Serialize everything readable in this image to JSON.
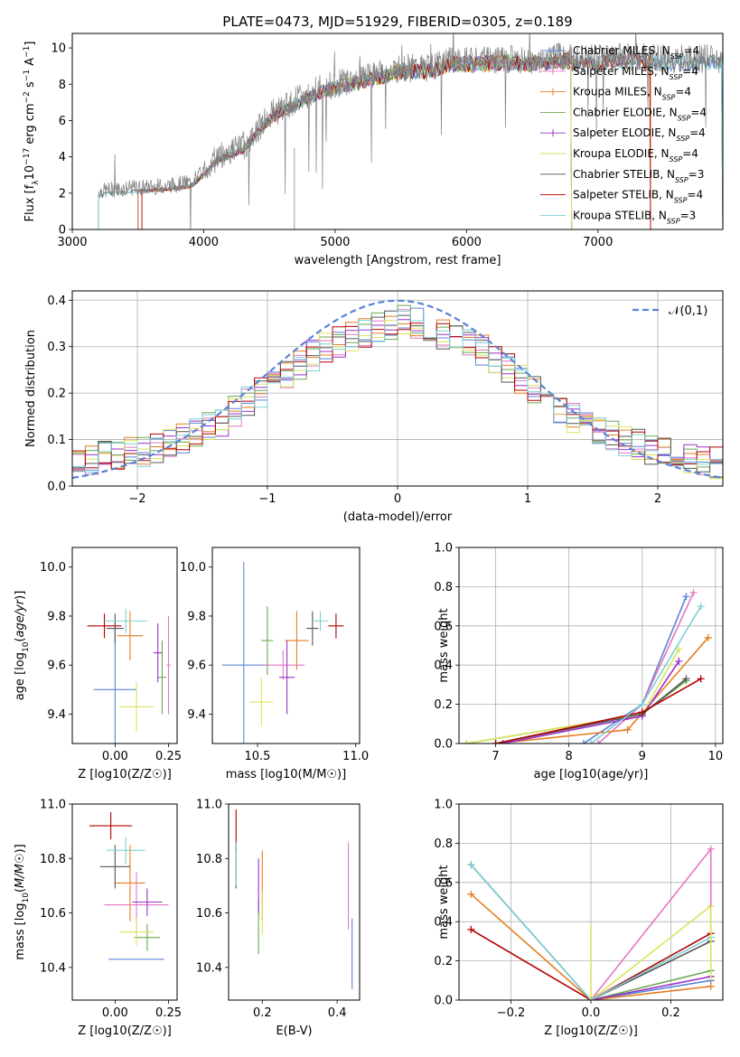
{
  "figure_title": "PLATE=0473, MJD=51929, FIBERID=0305, z=0.189",
  "colors": {
    "chabrier_miles": "#5b84d6",
    "salpeter_miles": "#e377c2",
    "kroupa_miles": "#e67e22",
    "chabrier_elodie": "#6aa84f",
    "salpeter_elodie": "#9b30c8",
    "kroupa_elodie": "#dce35b",
    "chabrier_stelib": "#555555",
    "salpeter_stelib": "#b30000",
    "kroupa_stelib": "#7ecfd6",
    "grid": "#b0b0b0"
  },
  "chart_data": [
    {
      "id": "spectrum",
      "type": "line",
      "title": "PLATE=0473, MJD=51929, FIBERID=0305, z=0.189",
      "xlabel": "wavelength [Angstrom, rest frame]",
      "ylabel": "Flux [f_λ 10^-17 erg cm^-2 s^-1 A^-1]",
      "xlim": [
        3000,
        7950
      ],
      "ylim": [
        0,
        10.8
      ],
      "xticks": [
        3000,
        4000,
        5000,
        6000,
        7000
      ],
      "yticks": [
        0,
        2,
        4,
        6,
        8,
        10
      ],
      "grid": false,
      "legend_position": "right",
      "series": [
        {
          "name": "Chabrier MILES, N_SSP=4",
          "color_key": "chabrier_miles",
          "marker": "+"
        },
        {
          "name": "Salpeter MILES, N_SSP=4",
          "color_key": "salpeter_miles",
          "marker": "+"
        },
        {
          "name": "Kroupa MILES, N_SSP=4",
          "color_key": "kroupa_miles",
          "marker": "+"
        },
        {
          "name": "Chabrier ELODIE, N_SSP=4",
          "color_key": "chabrier_elodie",
          "marker": ""
        },
        {
          "name": "Salpeter ELODIE, N_SSP=4",
          "color_key": "salpeter_elodie",
          "marker": "+"
        },
        {
          "name": "Kroupa ELODIE, N_SSP=4",
          "color_key": "kroupa_elodie",
          "marker": ""
        },
        {
          "name": "Chabrier STELIB, N_SSP=3",
          "color_key": "chabrier_stelib",
          "marker": ""
        },
        {
          "name": "Salpeter STELIB, N_SSP=4",
          "color_key": "salpeter_stelib",
          "marker": ""
        },
        {
          "name": "Kroupa STELIB, N_SSP=3",
          "color_key": "kroupa_stelib",
          "marker": ""
        }
      ],
      "continuum": {
        "x": [
          3200,
          3300,
          3500,
          3700,
          3900,
          4000,
          4100,
          4300,
          4500,
          4700,
          4900,
          5100,
          5300,
          5500,
          5700,
          5900,
          6100,
          6300,
          6500,
          6700,
          6900,
          7100,
          7300,
          7400
        ],
        "y": [
          2.1,
          2.2,
          2.3,
          2.4,
          2.6,
          3.2,
          4.0,
          4.6,
          6.3,
          7.1,
          7.8,
          8.2,
          8.5,
          8.9,
          8.9,
          9.3,
          9.3,
          9.4,
          9.3,
          9.5,
          9.4,
          9.5,
          9.5,
          9.4
        ]
      },
      "model_ranges": [
        {
          "series_index": 0,
          "x": [
            3500,
            7950
          ]
        },
        {
          "series_index": 1,
          "x": [
            3500,
            7400
          ]
        },
        {
          "series_index": 2,
          "x": [
            3500,
            7400
          ]
        },
        {
          "series_index": 3,
          "x": [
            3900,
            6800
          ]
        },
        {
          "series_index": 4,
          "x": [
            3900,
            6800
          ]
        },
        {
          "series_index": 5,
          "x": [
            3900,
            6800
          ]
        },
        {
          "series_index": 6,
          "x": [
            3200,
            7950
          ]
        },
        {
          "series_index": 7,
          "x": [
            3530,
            7400
          ]
        },
        {
          "series_index": 8,
          "x": [
            3200,
            7950
          ]
        }
      ]
    },
    {
      "id": "residuals",
      "type": "line",
      "xlabel": "(data-model)/error",
      "ylabel": "Normed distribution",
      "xlim": [
        -2.5,
        2.5
      ],
      "ylim": [
        0,
        0.42
      ],
      "xticks": [
        -2,
        -1,
        0,
        1,
        2
      ],
      "yticks": [
        0.0,
        0.1,
        0.2,
        0.3,
        0.4
      ],
      "grid": true,
      "legend_position": "top-right",
      "legend": [
        "𝒩(0,1)"
      ],
      "bin_edges_step": 0.1,
      "histogram_base": [
        0.05,
        0.06,
        0.065,
        0.07,
        0.07,
        0.075,
        0.08,
        0.09,
        0.1,
        0.12,
        0.13,
        0.14,
        0.16,
        0.18,
        0.2,
        0.22,
        0.24,
        0.26,
        0.28,
        0.3,
        0.31,
        0.32,
        0.33,
        0.34,
        0.35,
        0.36,
        0.35,
        0.34,
        0.33,
        0.32,
        0.31,
        0.29,
        0.27,
        0.25,
        0.23,
        0.21,
        0.19,
        0.17,
        0.15,
        0.13,
        0.12,
        0.11,
        0.1,
        0.09,
        0.08,
        0.07,
        0.065,
        0.06,
        0.055,
        0.05
      ]
    },
    {
      "id": "age_vs_Z",
      "type": "scatter",
      "xlabel": "Z [log10(Z/Z☉)]",
      "ylabel": "age  [log10(age/yr)]",
      "xlim": [
        -0.2,
        0.29
      ],
      "ylim": [
        9.28,
        10.08
      ],
      "xticks": [
        0.0,
        0.25
      ],
      "yticks": [
        9.4,
        9.6,
        9.8,
        10.0
      ],
      "grid": false,
      "points": [
        {
          "s": 0,
          "x": 0.0,
          "xerr": 0.1,
          "y": 9.5,
          "yerr": 0.28
        },
        {
          "s": 1,
          "x": 0.25,
          "xerr": 0.01,
          "y": 9.6,
          "yerr": 0.2
        },
        {
          "s": 2,
          "x": 0.07,
          "xerr": 0.06,
          "y": 9.72,
          "yerr": 0.1
        },
        {
          "s": 3,
          "x": 0.22,
          "xerr": 0.02,
          "y": 9.55,
          "yerr": 0.15
        },
        {
          "s": 4,
          "x": 0.2,
          "xerr": 0.02,
          "y": 9.65,
          "yerr": 0.12
        },
        {
          "s": 5,
          "x": 0.1,
          "xerr": 0.08,
          "y": 9.43,
          "yerr": 0.1
        },
        {
          "s": 6,
          "x": 0.0,
          "xerr": 0.04,
          "y": 9.75,
          "yerr": 0.06
        },
        {
          "s": 7,
          "x": -0.05,
          "xerr": 0.08,
          "y": 9.76,
          "yerr": 0.05
        },
        {
          "s": 8,
          "x": 0.05,
          "xerr": 0.1,
          "y": 9.78,
          "yerr": 0.05
        }
      ]
    },
    {
      "id": "age_vs_mass",
      "type": "scatter",
      "xlabel": "mass [log10(M/M☉)]",
      "ylabel": "",
      "xlim": [
        10.27,
        11.02
      ],
      "ylim": [
        9.28,
        10.08
      ],
      "xticks": [
        10.5,
        11.0
      ],
      "yticks": [
        9.4,
        9.6,
        9.8,
        10.0
      ],
      "grid": false,
      "points": [
        {
          "s": 0,
          "x": 10.43,
          "xerr": 0.11,
          "y": 9.6,
          "yerr": 0.42
        },
        {
          "s": 1,
          "x": 10.63,
          "xerr": 0.11,
          "y": 9.6,
          "yerr": 0.06
        },
        {
          "s": 2,
          "x": 10.7,
          "xerr": 0.06,
          "y": 9.7,
          "yerr": 0.12
        },
        {
          "s": 3,
          "x": 10.55,
          "xerr": 0.03,
          "y": 9.7,
          "yerr": 0.14
        },
        {
          "s": 4,
          "x": 10.65,
          "xerr": 0.04,
          "y": 9.55,
          "yerr": 0.15
        },
        {
          "s": 5,
          "x": 10.52,
          "xerr": 0.06,
          "y": 9.45,
          "yerr": 0.1
        },
        {
          "s": 6,
          "x": 10.78,
          "xerr": 0.03,
          "y": 9.75,
          "yerr": 0.07
        },
        {
          "s": 7,
          "x": 10.9,
          "xerr": 0.04,
          "y": 9.76,
          "yerr": 0.05
        },
        {
          "s": 8,
          "x": 10.82,
          "xerr": 0.04,
          "y": 9.78,
          "yerr": 0.04
        }
      ]
    },
    {
      "id": "massweight_vs_age",
      "type": "line",
      "xlabel": "age  [log10(age/yr)]",
      "ylabel": "mass weight",
      "xlim": [
        6.5,
        10.1
      ],
      "ylim": [
        0,
        1.0
      ],
      "xticks": [
        7,
        8,
        9,
        10
      ],
      "yticks": [
        0.0,
        0.2,
        0.4,
        0.6,
        0.8,
        1.0
      ],
      "grid": true,
      "lines": [
        {
          "s": 0,
          "x": [
            8.2,
            9.0,
            9.6
          ],
          "y": [
            0.0,
            0.2,
            0.75
          ]
        },
        {
          "s": 1,
          "x": [
            8.4,
            9.0,
            9.7
          ],
          "y": [
            0.0,
            0.2,
            0.77
          ]
        },
        {
          "s": 2,
          "x": [
            7.0,
            8.8,
            9.9
          ],
          "y": [
            0.0,
            0.07,
            0.54
          ]
        },
        {
          "s": 3,
          "x": [
            6.6,
            9.0,
            9.6
          ],
          "y": [
            0.0,
            0.15,
            0.32
          ]
        },
        {
          "s": 4,
          "x": [
            7.1,
            9.0,
            9.5
          ],
          "y": [
            0.0,
            0.14,
            0.42
          ]
        },
        {
          "s": 5,
          "x": [
            6.6,
            9.0,
            9.5
          ],
          "y": [
            0.0,
            0.15,
            0.48
          ]
        },
        {
          "s": 6,
          "x": [
            7.0,
            9.0,
            9.6
          ],
          "y": [
            0.0,
            0.15,
            0.33
          ]
        },
        {
          "s": 7,
          "x": [
            7.0,
            9.0,
            9.8
          ],
          "y": [
            0.0,
            0.16,
            0.33
          ]
        },
        {
          "s": 8,
          "x": [
            8.3,
            9.0,
            9.8
          ],
          "y": [
            0.0,
            0.2,
            0.7
          ]
        }
      ]
    },
    {
      "id": "mass_vs_Z",
      "type": "scatter",
      "xlabel": "Z [log10(Z/Z☉)]",
      "ylabel": "mass [log10(M/M☉)]",
      "xlim": [
        -0.2,
        0.29
      ],
      "ylim": [
        10.28,
        11.0
      ],
      "xticks": [
        0.0,
        0.25
      ],
      "yticks": [
        10.4,
        10.6,
        10.8,
        11.0
      ],
      "grid": false,
      "points": [
        {
          "s": 0,
          "x": 0.1,
          "xerr": 0.13,
          "y": 10.43,
          "yerr": 0.0
        },
        {
          "s": 1,
          "x": 0.1,
          "xerr": 0.15,
          "y": 10.63,
          "yerr": 0.12
        },
        {
          "s": 2,
          "x": 0.07,
          "xerr": 0.07,
          "y": 10.71,
          "yerr": 0.14
        },
        {
          "s": 3,
          "x": 0.15,
          "xerr": 0.06,
          "y": 10.51,
          "yerr": 0.05
        },
        {
          "s": 4,
          "x": 0.15,
          "xerr": 0.07,
          "y": 10.64,
          "yerr": 0.05
        },
        {
          "s": 5,
          "x": 0.1,
          "xerr": 0.08,
          "y": 10.53,
          "yerr": 0.05
        },
        {
          "s": 6,
          "x": 0.0,
          "xerr": 0.07,
          "y": 10.77,
          "yerr": 0.08
        },
        {
          "s": 7,
          "x": -0.02,
          "xerr": 0.1,
          "y": 10.92,
          "yerr": 0.05
        },
        {
          "s": 8,
          "x": 0.05,
          "xerr": 0.09,
          "y": 10.83,
          "yerr": 0.05
        }
      ]
    },
    {
      "id": "mass_vs_ebv",
      "type": "scatter",
      "xlabel": "E(B-V)",
      "ylabel": "",
      "xlim": [
        0.11,
        0.46
      ],
      "ylim": [
        10.28,
        11.0
      ],
      "xticks": [
        0.2,
        0.4
      ],
      "yticks": [
        10.4,
        10.6,
        10.8,
        11.0
      ],
      "grid": false,
      "points": [
        {
          "s": 0,
          "x": 0.44,
          "xerr": 0.0,
          "y": 10.45,
          "yerr": 0.13
        },
        {
          "s": 1,
          "x": 0.43,
          "xerr": 0.0,
          "y": 10.7,
          "yerr": 0.16
        },
        {
          "s": 2,
          "x": 0.2,
          "xerr": 0.0,
          "y": 10.7,
          "yerr": 0.13
        },
        {
          "s": 3,
          "x": 0.19,
          "xerr": 0.0,
          "y": 10.55,
          "yerr": 0.1
        },
        {
          "s": 4,
          "x": 0.19,
          "xerr": 0.0,
          "y": 10.7,
          "yerr": 0.1
        },
        {
          "s": 5,
          "x": 0.2,
          "xerr": 0.0,
          "y": 10.6,
          "yerr": 0.08
        },
        {
          "s": 6,
          "x": 0.13,
          "xerr": 0.0,
          "y": 10.77,
          "yerr": 0.08
        },
        {
          "s": 7,
          "x": 0.13,
          "xerr": 0.0,
          "y": 10.9,
          "yerr": 0.08
        },
        {
          "s": 8,
          "x": 0.13,
          "xerr": 0.0,
          "y": 10.78,
          "yerr": 0.08
        }
      ]
    },
    {
      "id": "massweight_vs_Z",
      "type": "line",
      "xlabel": "Z [log10(Z/Z☉)]",
      "ylabel": "mass weight",
      "xlim": [
        -0.33,
        0.33
      ],
      "ylim": [
        0,
        1.0
      ],
      "xticks": [
        -0.2,
        0.0,
        0.2
      ],
      "yticks": [
        0.0,
        0.2,
        0.4,
        0.6,
        0.8,
        1.0
      ],
      "grid": true,
      "lines": [
        {
          "s": 0,
          "x": [
            0.0,
            0.3
          ],
          "y": [
            0.0,
            0.1
          ]
        },
        {
          "s": 1,
          "x": [
            0.0,
            0.3
          ],
          "y": [
            0.0,
            0.77
          ]
        },
        {
          "s": 2,
          "x": [
            -0.3,
            0.0,
            0.3
          ],
          "y": [
            0.54,
            0.0,
            0.07
          ]
        },
        {
          "s": 3,
          "x": [
            0.0,
            0.3
          ],
          "y": [
            0.0,
            0.15
          ]
        },
        {
          "s": 4,
          "x": [
            0.0,
            0.3
          ],
          "y": [
            0.0,
            0.12
          ]
        },
        {
          "s": 5,
          "x": [
            0.0,
            0.3
          ],
          "y": [
            0.0,
            0.48
          ]
        },
        {
          "s": 6,
          "x": [
            -0.3,
            0.0,
            0.3
          ],
          "y": [
            0.69,
            0.0,
            0.3
          ]
        },
        {
          "s": 7,
          "x": [
            -0.3,
            0.0,
            0.3
          ],
          "y": [
            0.36,
            0.0,
            0.34
          ]
        },
        {
          "s": 8,
          "x": [
            -0.3,
            0.0,
            0.3
          ],
          "y": [
            0.69,
            0.0,
            0.32
          ]
        }
      ],
      "vertical_segments": [
        {
          "s": 5,
          "x": 0.0,
          "y": [
            0.0,
            0.38
          ]
        },
        {
          "s": 1,
          "x": 0.3,
          "y": [
            0.3,
            0.77
          ]
        },
        {
          "s": 5,
          "x": 0.3,
          "y": [
            0.1,
            0.48
          ]
        }
      ]
    }
  ]
}
